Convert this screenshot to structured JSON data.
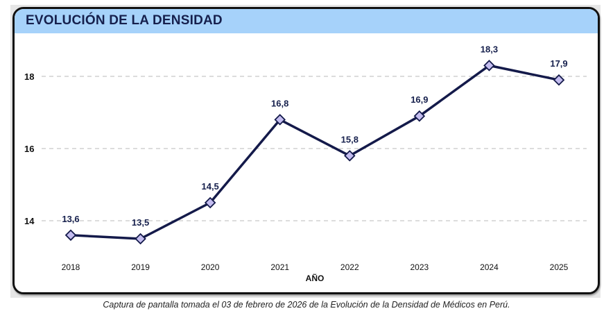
{
  "chart_data": {
    "type": "line",
    "title": "EVOLUCIÓN DE LA DENSIDAD",
    "xlabel": "AÑO",
    "ylabel": "",
    "categories": [
      "2018",
      "2019",
      "2020",
      "2021",
      "2022",
      "2023",
      "2024",
      "2025"
    ],
    "values": [
      13.6,
      13.5,
      14.5,
      16.8,
      15.8,
      16.9,
      18.3,
      17.9
    ],
    "value_labels": [
      "13,6",
      "13,5",
      "14,5",
      "16,8",
      "15,8",
      "16,9",
      "18,3",
      "17,9"
    ],
    "yticks": [
      14,
      16,
      18
    ],
    "ylim": [
      12.8,
      19
    ],
    "grid": "horizontal dashed",
    "line_color": "#141a4a",
    "marker": "diamond",
    "marker_color": "#c4bdf0",
    "header_color": "#a6d2fa"
  },
  "caption": "Captura de pantalla tomada el 03 de febrero de 2026 de la Evolución de la Densidad de Médicos en Perú."
}
